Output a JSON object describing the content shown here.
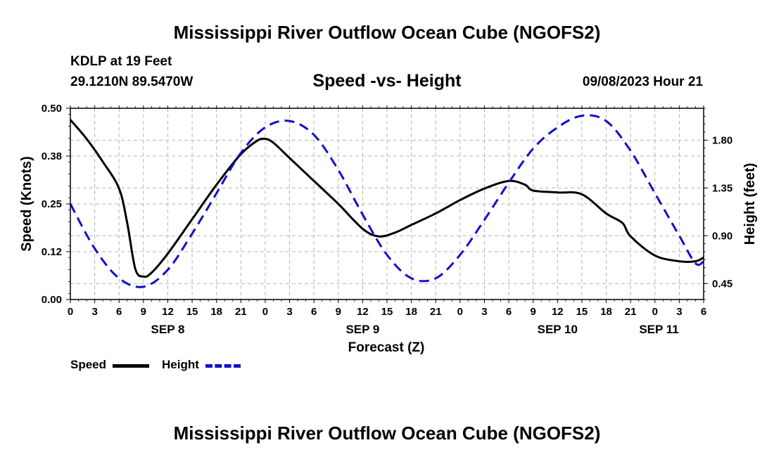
{
  "header": {
    "title": "Mississippi River Outflow Ocean Cube (NGOFS2)",
    "station": "KDLP at 19 Feet",
    "coords": "29.1210N  89.5470W",
    "subtitle": "Speed -vs- Height",
    "timestamp": "09/08/2023 Hour 21"
  },
  "footer": {
    "title": "Mississippi River Outflow Ocean Cube (NGOFS2)"
  },
  "legend": {
    "speed_label": "Speed",
    "height_label": "Height"
  },
  "colors": {
    "speed": "#000000",
    "height": "#1010c8",
    "grid": "#b4b4b4"
  },
  "chart_data": {
    "type": "line",
    "title": "Speed -vs- Height",
    "xlabel": "Forecast (Z)",
    "ylabel": "Speed (Knots)",
    "y2label": "Height (feet)",
    "xlim": [
      0,
      78
    ],
    "ylim": [
      0,
      0.5
    ],
    "y2lim": [
      0.3,
      2.1
    ],
    "x_tick_labels": [
      "0",
      "3",
      "6",
      "9",
      "12",
      "15",
      "18",
      "21",
      "0",
      "3",
      "6",
      "9",
      "12",
      "15",
      "18",
      "21",
      "0",
      "3",
      "6",
      "9",
      "12",
      "15",
      "18",
      "21",
      "0",
      "3",
      "6"
    ],
    "y_tick_labels": [
      "0.00",
      "0.12",
      "0.25",
      "0.38",
      "0.50"
    ],
    "y2_tick_labels": [
      "0.45",
      "0.90",
      "1.35",
      "1.80"
    ],
    "y2_ticks": [
      0.45,
      0.9,
      1.35,
      1.8
    ],
    "date_labels": [
      {
        "label": "SEP 8",
        "x": 12
      },
      {
        "label": "SEP 9",
        "x": 36
      },
      {
        "label": "SEP 10",
        "x": 60
      },
      {
        "label": "SEP 11",
        "x": 72.5
      }
    ],
    "grid": true,
    "series": [
      {
        "name": "Speed",
        "axis": "left",
        "style": "solid",
        "x": [
          0,
          2,
          4,
          6,
          7,
          8,
          9,
          10,
          12,
          15,
          18,
          21,
          23,
          24,
          25,
          27,
          30,
          33,
          36,
          38,
          40,
          42,
          45,
          48,
          51,
          54,
          56,
          57,
          60,
          63,
          66,
          68,
          69,
          72,
          75,
          77,
          78
        ],
        "values": [
          0.47,
          0.42,
          0.36,
          0.29,
          0.2,
          0.08,
          0.06,
          0.07,
          0.12,
          0.21,
          0.3,
          0.38,
          0.415,
          0.42,
          0.41,
          0.37,
          0.31,
          0.25,
          0.185,
          0.165,
          0.175,
          0.195,
          0.225,
          0.26,
          0.29,
          0.31,
          0.3,
          0.285,
          0.28,
          0.275,
          0.225,
          0.2,
          0.165,
          0.115,
          0.1,
          0.1,
          0.11
        ]
      },
      {
        "name": "Height",
        "axis": "right",
        "style": "dashed",
        "x": [
          0,
          3,
          6,
          9,
          12,
          15,
          18,
          21,
          24,
          27,
          30,
          33,
          36,
          39,
          42,
          45,
          48,
          51,
          54,
          57,
          60,
          63,
          66,
          69,
          72,
          75,
          77,
          78
        ],
        "values": [
          1.2,
          0.78,
          0.5,
          0.42,
          0.58,
          0.92,
          1.3,
          1.68,
          1.92,
          1.98,
          1.85,
          1.52,
          1.1,
          0.72,
          0.5,
          0.5,
          0.72,
          1.05,
          1.4,
          1.72,
          1.92,
          2.03,
          1.98,
          1.7,
          1.3,
          0.9,
          0.64,
          0.66
        ]
      }
    ]
  }
}
